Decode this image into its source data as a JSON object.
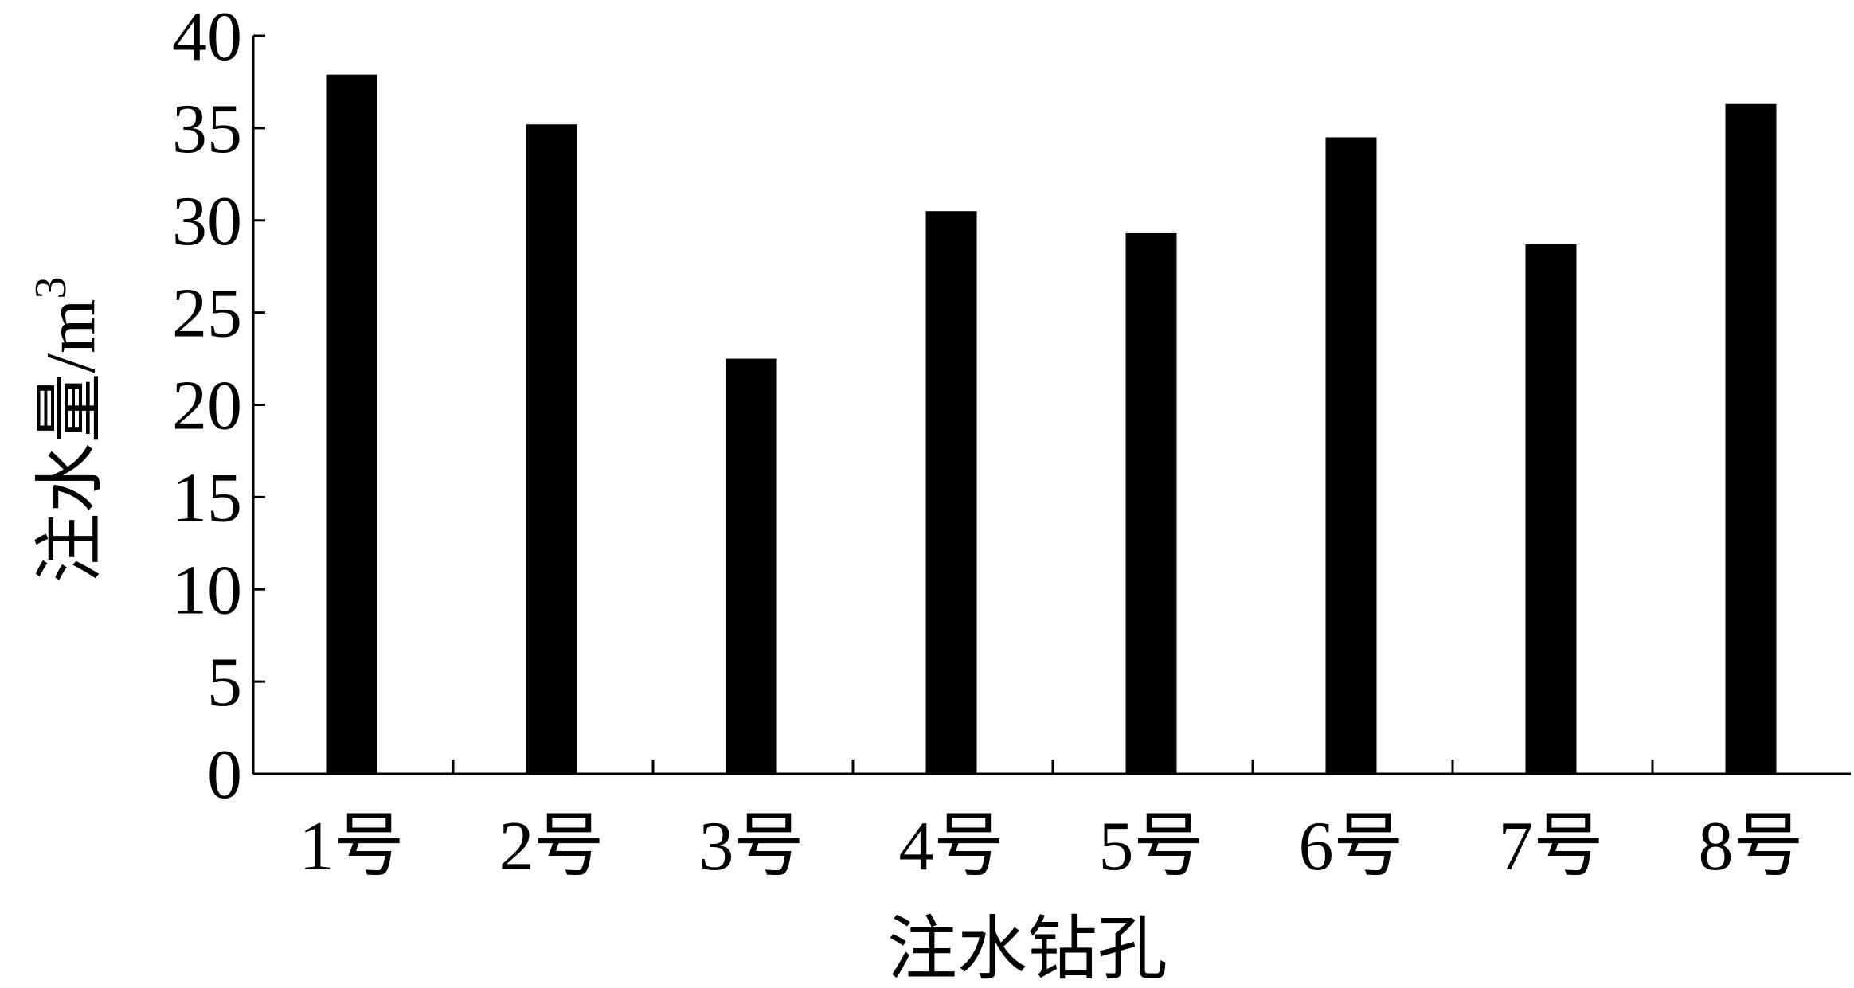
{
  "chart_data": {
    "type": "bar",
    "title": "",
    "xlabel": "注水钻孔",
    "ylabel": "注水量/m",
    "ylabel_superscript": "3",
    "categories": [
      "1号",
      "2号",
      "3号",
      "4号",
      "5号",
      "6号",
      "7号",
      "8号"
    ],
    "values": [
      37.9,
      35.2,
      22.5,
      30.5,
      29.3,
      34.5,
      28.7,
      36.3
    ],
    "ylim": [
      0,
      40
    ],
    "yticks": [
      0,
      5,
      10,
      15,
      20,
      25,
      30,
      35,
      40
    ],
    "grid": false,
    "bar_color": "#000000"
  }
}
